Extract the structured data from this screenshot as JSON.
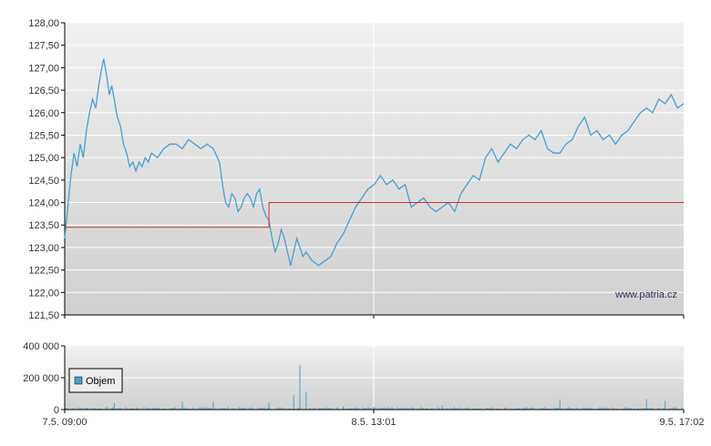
{
  "watermark": "www.patria.cz",
  "chart_data": [
    {
      "type": "line",
      "panel": "price",
      "ylim": [
        121.5,
        128.0
      ],
      "y_ticks": [
        "128,00",
        "127,50",
        "127,00",
        "126,50",
        "126,00",
        "125,50",
        "125,00",
        "124,50",
        "124,00",
        "123,50",
        "123,00",
        "122,50",
        "122,00",
        "121,50"
      ],
      "x_range": [
        0,
        100
      ],
      "grid": "on",
      "series": [
        {
          "color": "#4a9fd0",
          "points": [
            [
              0,
              123.2
            ],
            [
              0.5,
              123.9
            ],
            [
              1,
              124.6
            ],
            [
              1.5,
              125.1
            ],
            [
              2,
              124.8
            ],
            [
              2.5,
              125.3
            ],
            [
              3,
              125.0
            ],
            [
              3.5,
              125.6
            ],
            [
              4,
              126.0
            ],
            [
              4.5,
              126.3
            ],
            [
              5,
              126.1
            ],
            [
              5.5,
              126.6
            ],
            [
              6,
              127.0
            ],
            [
              6.3,
              127.2
            ],
            [
              6.8,
              126.8
            ],
            [
              7.2,
              126.4
            ],
            [
              7.6,
              126.6
            ],
            [
              8,
              126.3
            ],
            [
              8.5,
              125.9
            ],
            [
              9,
              125.7
            ],
            [
              9.5,
              125.3
            ],
            [
              10,
              125.1
            ],
            [
              10.5,
              124.8
            ],
            [
              11,
              124.9
            ],
            [
              11.5,
              124.7
            ],
            [
              12,
              124.9
            ],
            [
              12.5,
              124.8
            ],
            [
              13,
              125.0
            ],
            [
              13.5,
              124.9
            ],
            [
              14,
              125.1
            ],
            [
              15,
              125.0
            ],
            [
              16,
              125.2
            ],
            [
              17,
              125.3
            ],
            [
              18,
              125.3
            ],
            [
              19,
              125.2
            ],
            [
              20,
              125.4
            ],
            [
              21,
              125.3
            ],
            [
              22,
              125.2
            ],
            [
              23,
              125.3
            ],
            [
              24,
              125.2
            ],
            [
              25,
              124.9
            ],
            [
              25.5,
              124.4
            ],
            [
              26,
              124.0
            ],
            [
              26.5,
              123.9
            ],
            [
              27,
              124.2
            ],
            [
              27.5,
              124.1
            ],
            [
              28,
              123.8
            ],
            [
              28.5,
              123.9
            ],
            [
              29,
              124.1
            ],
            [
              29.5,
              124.2
            ],
            [
              30,
              124.1
            ],
            [
              30.5,
              123.9
            ],
            [
              31,
              124.2
            ],
            [
              31.5,
              124.3
            ],
            [
              32,
              123.9
            ],
            [
              32.5,
              123.7
            ],
            [
              33,
              123.6
            ],
            [
              33.5,
              123.2
            ],
            [
              34,
              122.9
            ],
            [
              34.5,
              123.1
            ],
            [
              35,
              123.4
            ],
            [
              35.5,
              123.2
            ],
            [
              36,
              122.9
            ],
            [
              36.5,
              122.6
            ],
            [
              37,
              122.9
            ],
            [
              37.5,
              123.2
            ],
            [
              38,
              123.0
            ],
            [
              38.5,
              122.8
            ],
            [
              39,
              122.9
            ],
            [
              40,
              122.7
            ],
            [
              41,
              122.6
            ],
            [
              42,
              122.7
            ],
            [
              43,
              122.8
            ],
            [
              44,
              123.1
            ],
            [
              45,
              123.3
            ],
            [
              46,
              123.6
            ],
            [
              47,
              123.9
            ],
            [
              48,
              124.1
            ],
            [
              49,
              124.3
            ],
            [
              50,
              124.4
            ],
            [
              51,
              124.6
            ],
            [
              52,
              124.4
            ],
            [
              53,
              124.5
            ],
            [
              54,
              124.3
            ],
            [
              55,
              124.4
            ],
            [
              56,
              123.9
            ],
            [
              57,
              124.0
            ],
            [
              58,
              124.1
            ],
            [
              59,
              123.9
            ],
            [
              60,
              123.8
            ],
            [
              61,
              123.9
            ],
            [
              62,
              124.0
            ],
            [
              63,
              123.8
            ],
            [
              64,
              124.2
            ],
            [
              65,
              124.4
            ],
            [
              66,
              124.6
            ],
            [
              67,
              124.5
            ],
            [
              68,
              125.0
            ],
            [
              69,
              125.2
            ],
            [
              70,
              124.9
            ],
            [
              71,
              125.1
            ],
            [
              72,
              125.3
            ],
            [
              73,
              125.2
            ],
            [
              74,
              125.4
            ],
            [
              75,
              125.5
            ],
            [
              76,
              125.4
            ],
            [
              77,
              125.6
            ],
            [
              78,
              125.2
            ],
            [
              79,
              125.1
            ],
            [
              80,
              125.1
            ],
            [
              81,
              125.3
            ],
            [
              82,
              125.4
            ],
            [
              83,
              125.7
            ],
            [
              84,
              125.9
            ],
            [
              85,
              125.5
            ],
            [
              86,
              125.6
            ],
            [
              87,
              125.4
            ],
            [
              88,
              125.5
            ],
            [
              89,
              125.3
            ],
            [
              90,
              125.5
            ],
            [
              91,
              125.6
            ],
            [
              92,
              125.8
            ],
            [
              93,
              126.0
            ],
            [
              94,
              126.1
            ],
            [
              95,
              126.0
            ],
            [
              96,
              126.3
            ],
            [
              97,
              126.2
            ],
            [
              98,
              126.4
            ],
            [
              99,
              126.1
            ],
            [
              100,
              126.2
            ]
          ]
        },
        {
          "color": "#cc3333",
          "points": [
            [
              0,
              123.45
            ],
            [
              33,
              123.45
            ],
            [
              33,
              124.0
            ],
            [
              100,
              124.0
            ]
          ]
        }
      ]
    },
    {
      "type": "bar",
      "panel": "volume",
      "ylim": [
        0,
        400000
      ],
      "y_ticks": [
        "400 000",
        "200 000",
        "0"
      ],
      "x_ticks": [
        "7.5. 09:00",
        "8.5. 13:01",
        "9.5. 17:02"
      ],
      "legend": {
        "entries": [
          "Objem"
        ],
        "placement": "bottom-left"
      },
      "color": "#4a9fd0",
      "spikes": [
        [
          8,
          40000
        ],
        [
          19,
          50000
        ],
        [
          24,
          50000
        ],
        [
          33,
          45000
        ],
        [
          37,
          90000
        ],
        [
          38,
          280000
        ],
        [
          39,
          110000
        ],
        [
          45,
          20000
        ],
        [
          61,
          25000
        ],
        [
          80,
          60000
        ],
        [
          94,
          65000
        ],
        [
          97,
          55000
        ]
      ]
    }
  ]
}
